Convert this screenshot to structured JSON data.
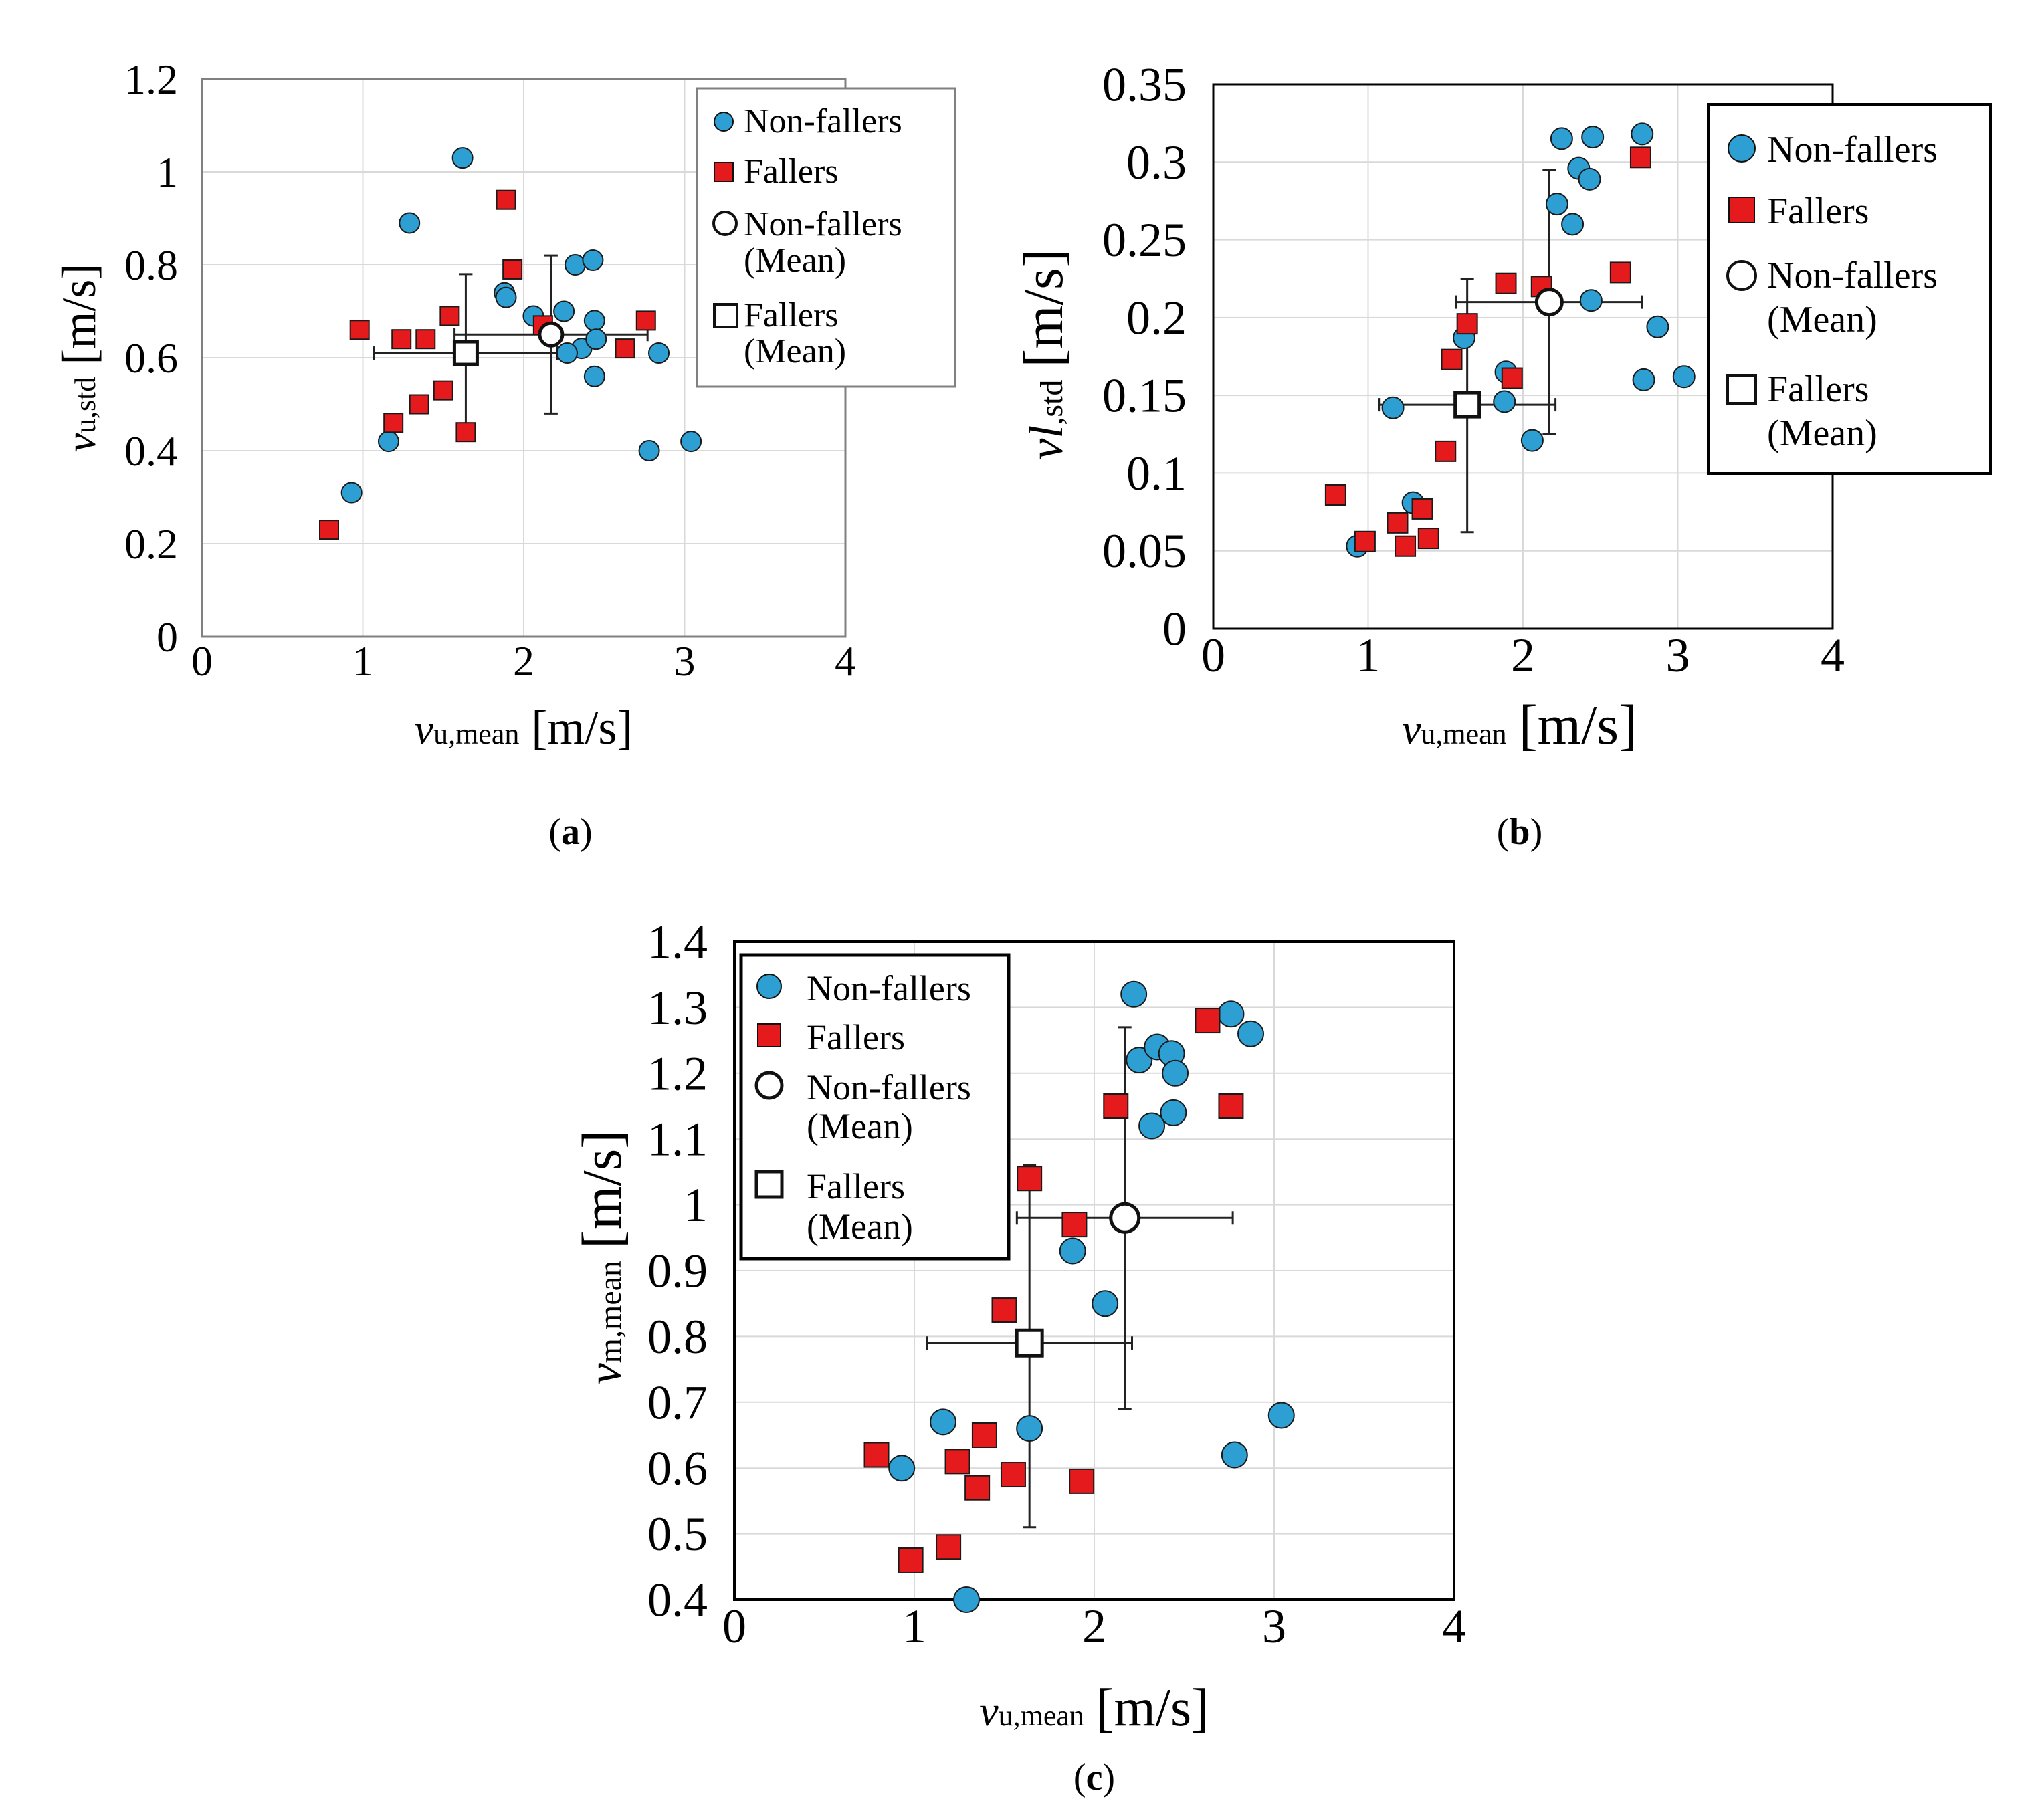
{
  "colors": {
    "non_fallers": "#2e9fd3",
    "fallers": "#e41a1c",
    "outline": "#000000",
    "grid": "#d9d9d9",
    "legend_border_a": "#808080",
    "legend_border_bc": "#000000"
  },
  "legend": {
    "non_fallers": "Non-fallers",
    "fallers": "Fallers",
    "non_fallers_mean_1": "Non-fallers",
    "non_fallers_mean_2": "(Mean)",
    "fallers_mean_1": "Fallers",
    "fallers_mean_2": "(Mean)"
  },
  "axis_text": {
    "x_sym": "v",
    "x_sub": "u,mean",
    "unit": "[m/s]",
    "a_y_sym": "v",
    "a_y_sub": "u,std",
    "b_y_sym": "vl",
    "b_y_sub": ",std",
    "c_y_sym": "v",
    "c_y_sub": "m,mean"
  },
  "captions": {
    "a": "a",
    "b": "b",
    "c": "c"
  },
  "chart_data": [
    {
      "id": "a",
      "type": "scatter",
      "caption": "(a)",
      "xlabel": "vu,mean [m/s]",
      "ylabel": "vu,std [m/s]",
      "xlim": [
        0,
        4
      ],
      "ylim": [
        0,
        1.2
      ],
      "xticks": [
        "0",
        "1",
        "2",
        "3",
        "4"
      ],
      "yticks": [
        "0",
        "0.2",
        "0.4",
        "0.6",
        "0.8",
        "1",
        "1.2"
      ],
      "legend_position": "top-right",
      "series": [
        {
          "name": "Non-fallers",
          "points": [
            [
              0.93,
              0.31
            ],
            [
              1.16,
              0.42
            ],
            [
              1.29,
              0.89
            ],
            [
              1.62,
              1.03
            ],
            [
              1.88,
              0.74
            ],
            [
              1.89,
              0.73
            ],
            [
              2.06,
              0.69
            ],
            [
              2.25,
              0.7
            ],
            [
              2.32,
              0.8
            ],
            [
              2.43,
              0.81
            ],
            [
              2.36,
              0.62
            ],
            [
              2.44,
              0.68
            ],
            [
              2.45,
              0.64
            ],
            [
              2.44,
              0.56
            ],
            [
              2.27,
              0.61
            ],
            [
              2.78,
              0.4
            ],
            [
              2.84,
              0.61
            ],
            [
              3.04,
              0.42
            ]
          ]
        },
        {
          "name": "Fallers",
          "points": [
            [
              0.79,
              0.23
            ],
            [
              0.98,
              0.66
            ],
            [
              1.19,
              0.46
            ],
            [
              1.24,
              0.64
            ],
            [
              1.35,
              0.5
            ],
            [
              1.39,
              0.64
            ],
            [
              1.5,
              0.53
            ],
            [
              1.54,
              0.69
            ],
            [
              1.64,
              0.44
            ],
            [
              1.89,
              0.94
            ],
            [
              1.93,
              0.79
            ],
            [
              2.12,
              0.67
            ],
            [
              2.63,
              0.62
            ],
            [
              2.76,
              0.68
            ]
          ]
        }
      ],
      "means": {
        "non_fallers": {
          "x": 2.17,
          "y": 0.65,
          "xerr": [
            1.57,
            2.77
          ],
          "yerr": [
            0.48,
            0.82
          ]
        },
        "fallers": {
          "x": 1.64,
          "y": 0.61,
          "xerr": [
            1.07,
            2.21
          ],
          "yerr": [
            0.44,
            0.78
          ]
        }
      }
    },
    {
      "id": "b",
      "type": "scatter",
      "caption": "(b)",
      "xlabel": "vu,mean [m/s]",
      "ylabel": "vl,std [m/s]",
      "xlim": [
        0,
        4
      ],
      "ylim": [
        0,
        0.35
      ],
      "xticks": [
        "0",
        "1",
        "2",
        "3",
        "4"
      ],
      "yticks": [
        "0",
        "0.05",
        "0.1",
        "0.15",
        "0.2",
        "0.25",
        "0.3",
        "0.35"
      ],
      "legend_position": "top-right",
      "series": [
        {
          "name": "Non-fallers",
          "points": [
            [
              0.93,
              0.053
            ],
            [
              1.16,
              0.142
            ],
            [
              1.29,
              0.081
            ],
            [
              1.62,
              0.187
            ],
            [
              1.88,
              0.146
            ],
            [
              1.89,
              0.165
            ],
            [
              2.06,
              0.121
            ],
            [
              2.25,
              0.315
            ],
            [
              2.32,
              0.26
            ],
            [
              2.36,
              0.296
            ],
            [
              2.43,
              0.289
            ],
            [
              2.44,
              0.211
            ],
            [
              2.45,
              0.316
            ],
            [
              2.22,
              0.273
            ],
            [
              2.78,
              0.16
            ],
            [
              2.77,
              0.318
            ],
            [
              2.87,
              0.194
            ],
            [
              3.04,
              0.162
            ]
          ]
        },
        {
          "name": "Fallers",
          "points": [
            [
              0.79,
              0.086
            ],
            [
              0.98,
              0.056
            ],
            [
              1.19,
              0.068
            ],
            [
              1.24,
              0.053
            ],
            [
              1.35,
              0.077
            ],
            [
              1.39,
              0.058
            ],
            [
              1.5,
              0.114
            ],
            [
              1.54,
              0.173
            ],
            [
              1.64,
              0.196
            ],
            [
              1.89,
              0.222
            ],
            [
              1.93,
              0.161
            ],
            [
              2.12,
              0.22
            ],
            [
              2.63,
              0.229
            ],
            [
              2.76,
              0.303
            ]
          ]
        }
      ],
      "means": {
        "non_fallers": {
          "x": 2.17,
          "y": 0.21,
          "xerr": [
            1.57,
            2.77
          ],
          "yerr": [
            0.125,
            0.295
          ]
        },
        "fallers": {
          "x": 1.64,
          "y": 0.144,
          "xerr": [
            1.07,
            2.21
          ],
          "yerr": [
            0.062,
            0.225
          ]
        }
      }
    },
    {
      "id": "c",
      "type": "scatter",
      "caption": "(c)",
      "xlabel": "vu,mean [m/s]",
      "ylabel": "vm,mean [m/s]",
      "xlim": [
        0,
        4
      ],
      "ylim": [
        0.4,
        1.4
      ],
      "xticks": [
        "0",
        "1",
        "2",
        "3",
        "4"
      ],
      "yticks": [
        "0.4",
        "0.5",
        "0.6",
        "0.7",
        "0.8",
        "0.9",
        "1",
        "1.1",
        "1.2",
        "1.3",
        "1.4"
      ],
      "legend_position": "top-left",
      "series": [
        {
          "name": "Non-fallers",
          "points": [
            [
              0.93,
              0.6
            ],
            [
              1.16,
              0.67
            ],
            [
              1.29,
              0.4
            ],
            [
              1.64,
              0.66
            ],
            [
              1.88,
              0.93
            ],
            [
              2.06,
              0.85
            ],
            [
              2.22,
              1.32
            ],
            [
              2.25,
              1.22
            ],
            [
              2.32,
              1.12
            ],
            [
              2.35,
              1.24
            ],
            [
              2.43,
              1.23
            ],
            [
              2.44,
              1.14
            ],
            [
              2.45,
              1.2
            ],
            [
              2.76,
              1.29
            ],
            [
              2.78,
              0.62
            ],
            [
              2.87,
              1.26
            ],
            [
              3.04,
              0.68
            ]
          ]
        },
        {
          "name": "Fallers",
          "points": [
            [
              0.79,
              0.62
            ],
            [
              0.98,
              0.46
            ],
            [
              1.19,
              0.48
            ],
            [
              1.24,
              0.61
            ],
            [
              1.35,
              0.57
            ],
            [
              1.39,
              0.65
            ],
            [
              1.5,
              0.84
            ],
            [
              1.55,
              0.59
            ],
            [
              1.64,
              1.04
            ],
            [
              1.89,
              0.97
            ],
            [
              1.93,
              0.58
            ],
            [
              2.12,
              1.15
            ],
            [
              2.63,
              1.28
            ],
            [
              2.76,
              1.15
            ]
          ]
        }
      ],
      "means": {
        "non_fallers": {
          "x": 2.17,
          "y": 0.98,
          "xerr": [
            1.57,
            2.77
          ],
          "yerr": [
            0.69,
            1.27
          ]
        },
        "fallers": {
          "x": 1.64,
          "y": 0.79,
          "xerr": [
            1.07,
            2.21
          ],
          "yerr": [
            0.51,
            1.06
          ]
        }
      }
    }
  ]
}
